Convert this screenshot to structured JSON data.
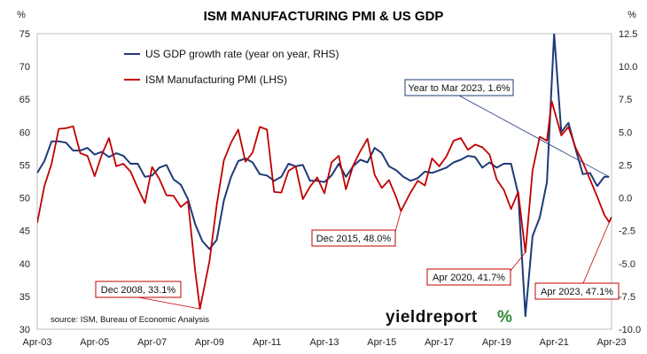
{
  "chart_data": {
    "type": "line",
    "title": "ISM MANUFACTURING PMI & US GDP",
    "left_axis": {
      "unit_label": "%",
      "range": [
        30,
        75
      ],
      "ticks": [
        30,
        35,
        40,
        45,
        50,
        55,
        60,
        65,
        70,
        75
      ]
    },
    "right_axis": {
      "unit_label": "%",
      "range": [
        -10,
        12.5
      ],
      "ticks": [
        "-10.0",
        "-7.5",
        "-5.0",
        "-2.5",
        "0.0",
        "2.5",
        "5.0",
        "7.5",
        "10.0",
        "12.5"
      ]
    },
    "x_axis": {
      "range": [
        "2003-04",
        "2023-04"
      ],
      "tick_labels": [
        "Apr-03",
        "Apr-05",
        "Apr-07",
        "Apr-09",
        "Apr-11",
        "Apr-13",
        "Apr-15",
        "Apr-17",
        "Apr-19",
        "Apr-21",
        "Apr-23"
      ]
    },
    "grid": false,
    "legend_position": "top-left",
    "series": [
      {
        "name": "US GDP growth rate (year on year, RHS)",
        "axis": "right",
        "color": "#1f3a78",
        "points": [
          [
            "2003-04",
            1.9
          ],
          [
            "2003-07",
            2.8
          ],
          [
            "2003-10",
            4.3
          ],
          [
            "2004-01",
            4.3
          ],
          [
            "2004-04",
            4.2
          ],
          [
            "2004-07",
            3.6
          ],
          [
            "2004-10",
            3.6
          ],
          [
            "2005-01",
            3.8
          ],
          [
            "2005-04",
            3.3
          ],
          [
            "2005-07",
            3.5
          ],
          [
            "2005-10",
            3.1
          ],
          [
            "2006-01",
            3.4
          ],
          [
            "2006-04",
            3.2
          ],
          [
            "2006-07",
            2.6
          ],
          [
            "2006-10",
            2.6
          ],
          [
            "2007-01",
            1.6
          ],
          [
            "2007-04",
            1.7
          ],
          [
            "2007-07",
            2.3
          ],
          [
            "2007-10",
            2.5
          ],
          [
            "2008-01",
            1.4
          ],
          [
            "2008-04",
            1.0
          ],
          [
            "2008-07",
            -0.1
          ],
          [
            "2008-10",
            -2.0
          ],
          [
            "2009-01",
            -3.3
          ],
          [
            "2009-04",
            -3.9
          ],
          [
            "2009-07",
            -3.2
          ],
          [
            "2009-10",
            -0.2
          ],
          [
            "2010-01",
            1.6
          ],
          [
            "2010-04",
            2.8
          ],
          [
            "2010-07",
            3.0
          ],
          [
            "2010-10",
            2.7
          ],
          [
            "2011-01",
            1.8
          ],
          [
            "2011-04",
            1.7
          ],
          [
            "2011-07",
            1.3
          ],
          [
            "2011-10",
            1.6
          ],
          [
            "2012-01",
            2.6
          ],
          [
            "2012-04",
            2.4
          ],
          [
            "2012-07",
            2.5
          ],
          [
            "2012-10",
            1.3
          ],
          [
            "2013-01",
            1.3
          ],
          [
            "2013-04",
            1.2
          ],
          [
            "2013-07",
            1.7
          ],
          [
            "2013-10",
            2.6
          ],
          [
            "2014-01",
            1.6
          ],
          [
            "2014-04",
            2.4
          ],
          [
            "2014-07",
            2.9
          ],
          [
            "2014-10",
            2.7
          ],
          [
            "2015-01",
            3.8
          ],
          [
            "2015-04",
            3.4
          ],
          [
            "2015-07",
            2.4
          ],
          [
            "2015-10",
            2.1
          ],
          [
            "2016-01",
            1.6
          ],
          [
            "2016-04",
            1.3
          ],
          [
            "2016-07",
            1.5
          ],
          [
            "2016-10",
            2.0
          ],
          [
            "2017-01",
            1.9
          ],
          [
            "2017-04",
            2.1
          ],
          [
            "2017-07",
            2.3
          ],
          [
            "2017-10",
            2.7
          ],
          [
            "2018-01",
            2.9
          ],
          [
            "2018-04",
            3.2
          ],
          [
            "2018-07",
            3.1
          ],
          [
            "2018-10",
            2.3
          ],
          [
            "2019-01",
            2.7
          ],
          [
            "2019-04",
            2.3
          ],
          [
            "2019-07",
            2.6
          ],
          [
            "2019-10",
            2.6
          ],
          [
            "2020-01",
            0.3
          ],
          [
            "2020-04",
            -9.0
          ],
          [
            "2020-07",
            -2.9
          ],
          [
            "2020-10",
            -1.5
          ],
          [
            "2021-01",
            1.2
          ],
          [
            "2021-04",
            12.5
          ],
          [
            "2021-07",
            5.0
          ],
          [
            "2021-10",
            5.7
          ],
          [
            "2022-01",
            3.7
          ],
          [
            "2022-04",
            1.8
          ],
          [
            "2022-07",
            1.9
          ],
          [
            "2022-10",
            0.9
          ],
          [
            "2023-01",
            1.6
          ],
          [
            "2023-03",
            1.6
          ]
        ]
      },
      {
        "name": "ISM Manufacturing PMI (LHS)",
        "axis": "left",
        "color": "#c00000",
        "points": [
          [
            "2003-04",
            46.2
          ],
          [
            "2003-07",
            51.8
          ],
          [
            "2003-10",
            55.2
          ],
          [
            "2004-01",
            60.5
          ],
          [
            "2004-04",
            60.6
          ],
          [
            "2004-07",
            60.9
          ],
          [
            "2004-10",
            56.8
          ],
          [
            "2005-01",
            56.4
          ],
          [
            "2005-04",
            53.3
          ],
          [
            "2005-07",
            56.6
          ],
          [
            "2005-10",
            59.1
          ],
          [
            "2006-01",
            54.8
          ],
          [
            "2006-04",
            55.2
          ],
          [
            "2006-07",
            54.0
          ],
          [
            "2006-10",
            51.5
          ],
          [
            "2007-01",
            49.2
          ],
          [
            "2007-04",
            54.7
          ],
          [
            "2007-07",
            52.9
          ],
          [
            "2007-10",
            50.4
          ],
          [
            "2008-01",
            50.3
          ],
          [
            "2008-04",
            48.6
          ],
          [
            "2008-07",
            49.5
          ],
          [
            "2008-10",
            38.9
          ],
          [
            "2008-12",
            33.1
          ],
          [
            "2009-04",
            40.4
          ],
          [
            "2009-07",
            48.9
          ],
          [
            "2009-10",
            55.7
          ],
          [
            "2010-01",
            58.4
          ],
          [
            "2010-04",
            60.4
          ],
          [
            "2010-07",
            55.5
          ],
          [
            "2010-10",
            56.9
          ],
          [
            "2011-01",
            60.8
          ],
          [
            "2011-04",
            60.4
          ],
          [
            "2011-07",
            50.9
          ],
          [
            "2011-10",
            50.8
          ],
          [
            "2012-01",
            54.1
          ],
          [
            "2012-04",
            54.8
          ],
          [
            "2012-07",
            49.8
          ],
          [
            "2012-10",
            51.7
          ],
          [
            "2013-01",
            53.1
          ],
          [
            "2013-04",
            50.7
          ],
          [
            "2013-07",
            55.4
          ],
          [
            "2013-10",
            56.4
          ],
          [
            "2014-01",
            51.3
          ],
          [
            "2014-04",
            54.9
          ],
          [
            "2014-07",
            57.1
          ],
          [
            "2014-10",
            59.0
          ],
          [
            "2015-01",
            53.5
          ],
          [
            "2015-04",
            51.5
          ],
          [
            "2015-07",
            52.7
          ],
          [
            "2015-10",
            50.1
          ],
          [
            "2015-12",
            48.0
          ],
          [
            "2016-04",
            50.8
          ],
          [
            "2016-07",
            52.6
          ],
          [
            "2016-10",
            51.9
          ],
          [
            "2017-01",
            56.0
          ],
          [
            "2017-04",
            54.8
          ],
          [
            "2017-07",
            56.3
          ],
          [
            "2017-10",
            58.7
          ],
          [
            "2018-01",
            59.1
          ],
          [
            "2018-04",
            57.3
          ],
          [
            "2018-07",
            58.1
          ],
          [
            "2018-10",
            57.7
          ],
          [
            "2019-01",
            56.6
          ],
          [
            "2019-04",
            52.8
          ],
          [
            "2019-07",
            51.2
          ],
          [
            "2019-10",
            48.3
          ],
          [
            "2020-01",
            50.9
          ],
          [
            "2020-04",
            41.7
          ],
          [
            "2020-07",
            54.2
          ],
          [
            "2020-10",
            59.3
          ],
          [
            "2021-01",
            58.7
          ],
          [
            "2021-03",
            64.7
          ],
          [
            "2021-07",
            59.5
          ],
          [
            "2021-10",
            60.8
          ],
          [
            "2022-01",
            57.6
          ],
          [
            "2022-04",
            55.4
          ],
          [
            "2022-07",
            52.8
          ],
          [
            "2022-10",
            50.2
          ],
          [
            "2023-01",
            47.4
          ],
          [
            "2023-03",
            46.3
          ],
          [
            "2023-04",
            47.1
          ]
        ]
      }
    ],
    "annotations": [
      {
        "label": "Year to Mar 2023, 1.6%",
        "target": "2023-03",
        "series": 0,
        "border": "#1f3a78"
      },
      {
        "label": "Dec 2008, 33.1%",
        "target": "2008-12",
        "series": 1,
        "border": "#c00000"
      },
      {
        "label": "Dec 2015, 48.0%",
        "target": "2015-12",
        "series": 1,
        "border": "#c00000"
      },
      {
        "label": "Apr 2020, 41.7%",
        "target": "2020-04",
        "series": 1,
        "border": "#c00000"
      },
      {
        "label": "Apr 2023, 47.1%",
        "target": "2023-04",
        "series": 1,
        "border": "#c00000"
      }
    ],
    "source_note": "source: ISM, Bureau of Economic Analysis",
    "logo": {
      "text": "yieldreport",
      "mark": "%"
    }
  }
}
